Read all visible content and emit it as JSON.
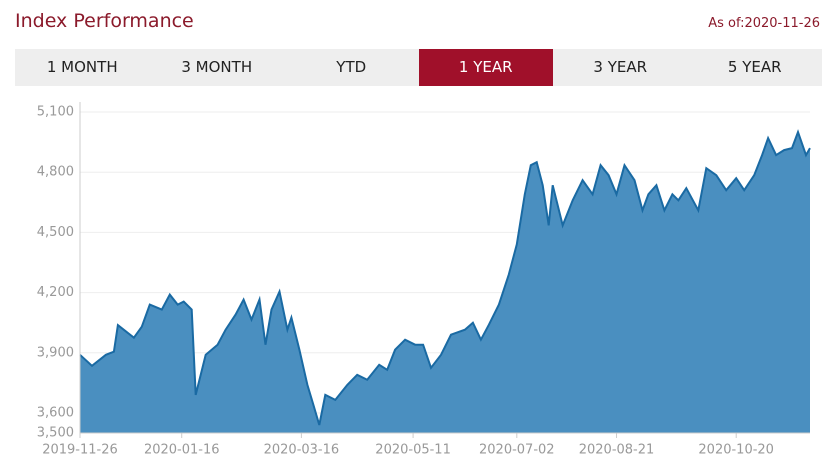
{
  "header": {
    "title": "Index Performance",
    "as_of": "As of:2020-11-26"
  },
  "tabs": {
    "items": [
      "1 MONTH",
      "3 MONTH",
      "YTD",
      "1 YEAR",
      "3 YEAR",
      "5 YEAR"
    ],
    "active": 3
  },
  "chart_data": {
    "type": "area",
    "color": "#4a8fc0",
    "line_color": "#1a6aa3",
    "grid": true,
    "x": [
      "2019-11-26",
      "2019-12-02",
      "2019-12-09",
      "2019-12-13",
      "2019-12-15",
      "2019-12-23",
      "2019-12-27",
      "2019-12-31",
      "2020-01-06",
      "2020-01-10",
      "2020-01-14",
      "2020-01-17",
      "2020-01-21",
      "2020-01-23",
      "2020-01-28",
      "2020-02-03",
      "2020-02-07",
      "2020-02-12",
      "2020-02-16",
      "2020-02-20",
      "2020-02-24",
      "2020-02-27",
      "2020-03-01",
      "2020-03-05",
      "2020-03-09",
      "2020-03-11",
      "2020-03-15",
      "2020-03-19",
      "2020-03-22",
      "2020-03-25",
      "2020-03-28",
      "2020-04-02",
      "2020-04-08",
      "2020-04-13",
      "2020-04-18",
      "2020-04-24",
      "2020-04-28",
      "2020-05-02",
      "2020-05-07",
      "2020-05-12",
      "2020-05-16",
      "2020-05-20",
      "2020-05-25",
      "2020-05-30",
      "2020-06-06",
      "2020-06-10",
      "2020-06-14",
      "2020-06-18",
      "2020-06-23",
      "2020-06-28",
      "2020-07-02",
      "2020-07-06",
      "2020-07-09",
      "2020-07-12",
      "2020-07-15",
      "2020-07-18",
      "2020-07-20",
      "2020-07-25",
      "2020-07-30",
      "2020-08-04",
      "2020-08-09",
      "2020-08-13",
      "2020-08-17",
      "2020-08-21",
      "2020-08-25",
      "2020-08-30",
      "2020-09-03",
      "2020-09-06",
      "2020-09-10",
      "2020-09-14",
      "2020-09-18",
      "2020-09-21",
      "2020-09-25",
      "2020-10-01",
      "2020-10-05",
      "2020-10-10",
      "2020-10-15",
      "2020-10-20",
      "2020-10-24",
      "2020-10-29",
      "2020-11-02",
      "2020-11-05",
      "2020-11-09",
      "2020-11-13",
      "2020-11-17",
      "2020-11-20",
      "2020-11-24",
      "2020-11-26"
    ],
    "values": [
      3890,
      3835,
      3890,
      3905,
      4038,
      3975,
      4030,
      4140,
      4115,
      4190,
      4140,
      4155,
      4115,
      3690,
      3890,
      3940,
      4015,
      4090,
      4165,
      4065,
      4165,
      3940,
      4115,
      4205,
      4015,
      4075,
      3915,
      3740,
      3640,
      3540,
      3690,
      3665,
      3740,
      3790,
      3765,
      3840,
      3815,
      3915,
      3965,
      3940,
      3940,
      3825,
      3890,
      3990,
      4015,
      4050,
      3965,
      4040,
      4140,
      4290,
      4440,
      4690,
      4835,
      4850,
      4735,
      4535,
      4735,
      4535,
      4660,
      4760,
      4690,
      4835,
      4785,
      4690,
      4835,
      4760,
      4610,
      4690,
      4735,
      4610,
      4690,
      4660,
      4720,
      4610,
      4820,
      4785,
      4710,
      4770,
      4710,
      4785,
      4885,
      4970,
      4885,
      4910,
      4920,
      5000,
      4885,
      4920
    ],
    "xlim": [
      "2019-11-26",
      "2020-11-26"
    ],
    "xticks": [
      "2019-11-26",
      "2020-01-16",
      "2020-03-16",
      "2020-05-11",
      "2020-07-02",
      "2020-08-21",
      "2020-10-20"
    ],
    "ylim": [
      3500,
      5100
    ],
    "yticks": [
      {
        "value": 3500,
        "label": "3,500"
      },
      {
        "value": 3600,
        "label": "3,600"
      },
      {
        "value": 3900,
        "label": "3,900"
      },
      {
        "value": 4200,
        "label": "4,200"
      },
      {
        "value": 4500,
        "label": "4,500"
      },
      {
        "value": 4800,
        "label": "4,800"
      },
      {
        "value": 5100,
        "label": "5,100"
      }
    ]
  }
}
